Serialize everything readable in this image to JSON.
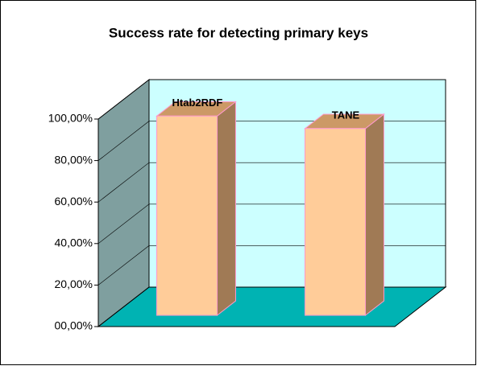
{
  "chart_data": {
    "type": "bar3d",
    "title": "Success rate for detecting primary keys",
    "categories": [
      "Htab2RDF",
      "TANE"
    ],
    "values": [
      96,
      90
    ],
    "color": "#ffcc99",
    "ylim": [
      0,
      100
    ],
    "yticks": [
      {
        "value": 0,
        "label": "00,00%"
      },
      {
        "value": 20,
        "label": "20,00%"
      },
      {
        "value": 40,
        "label": "40,00%"
      },
      {
        "value": 60,
        "label": "60,00%"
      },
      {
        "value": 80,
        "label": "80,00%"
      },
      {
        "value": 100,
        "label": "100,00%"
      }
    ],
    "grid": true
  }
}
